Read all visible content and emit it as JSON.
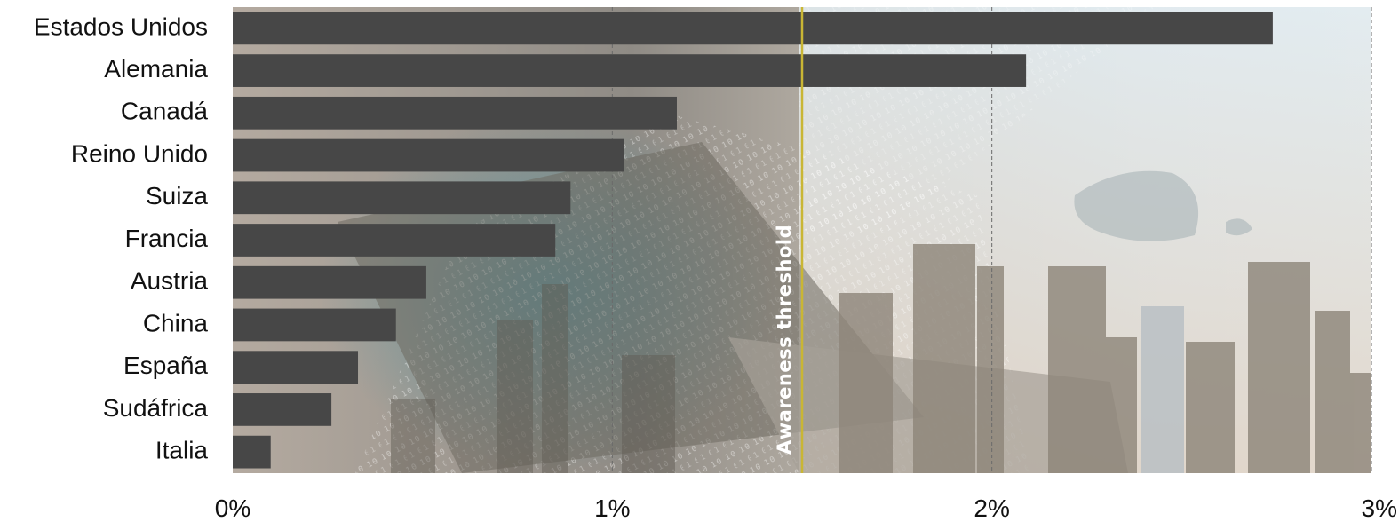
{
  "chart_data": {
    "type": "bar",
    "orientation": "horizontal",
    "categories": [
      "Estados Unidos",
      "Alemania",
      "Canadá",
      "Reino Unido",
      "Suiza",
      "Francia",
      "Austria",
      "China",
      "España",
      "Sudáfrica",
      "Italia"
    ],
    "values": [
      2.74,
      2.09,
      1.17,
      1.03,
      0.89,
      0.85,
      0.51,
      0.43,
      0.33,
      0.26,
      0.1
    ],
    "xlim": [
      0,
      3
    ],
    "xticks": [
      0,
      1,
      2,
      3
    ],
    "xtick_labels": [
      "0%",
      "1%",
      "2%",
      "3%"
    ],
    "grid": true,
    "bar_color": "#474747",
    "threshold": {
      "value": 1.5,
      "label": "Awareness threshold",
      "color": "#c9b634"
    },
    "background": "photo collage of a laptop with binary code, a world map and a city skyline"
  }
}
